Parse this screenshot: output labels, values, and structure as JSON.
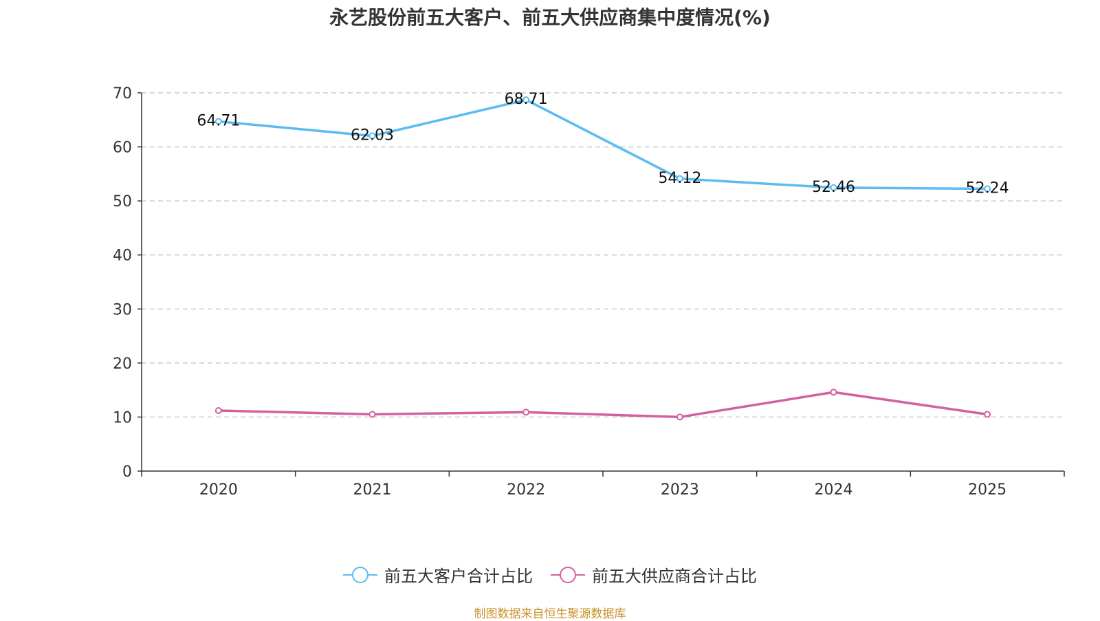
{
  "chart_data": {
    "type": "line",
    "title": "永艺股份前五大客户、前五大供应商集中度情况(%)",
    "categories": [
      "2020",
      "2021",
      "2022",
      "2023",
      "2024",
      "2025"
    ],
    "y_ticks": [
      "0",
      "10",
      "20",
      "30",
      "40",
      "50",
      "60",
      "70"
    ],
    "ylim": [
      0,
      70
    ],
    "grid": true,
    "legend_position": "bottom-center",
    "series": [
      {
        "name": "前五大客户合计占比",
        "color": "#5bbcf1",
        "values": [
          64.71,
          62.03,
          68.71,
          54.12,
          52.46,
          52.24
        ],
        "labels": [
          "64.71",
          "62.03",
          "68.71",
          "54.12",
          "52.46",
          "52.24"
        ]
      },
      {
        "name": "前五大供应商合计占比",
        "color": "#d4609f",
        "values": [
          11.2,
          10.5,
          10.9,
          10.0,
          14.6,
          10.5
        ]
      }
    ],
    "source": "制图数据来自恒生聚源数据库"
  }
}
